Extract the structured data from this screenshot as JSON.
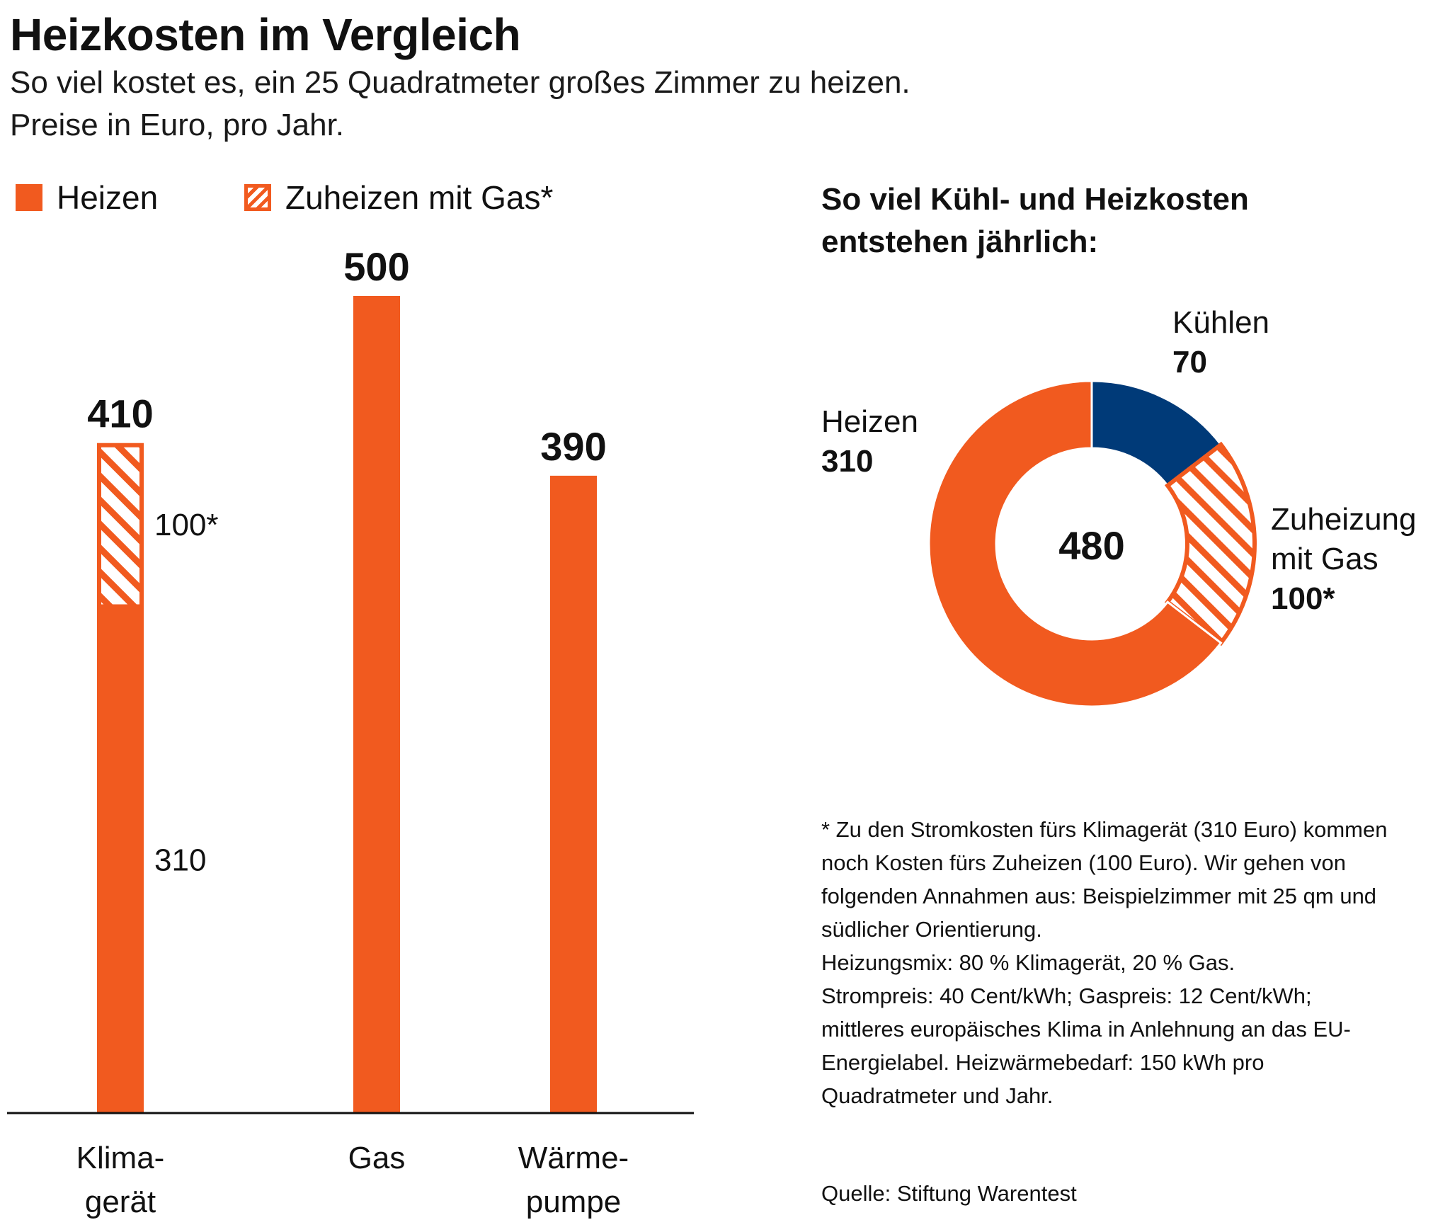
{
  "title": "Heizkosten im Vergleich",
  "subtitle_line1": "So viel kostet es, ein 25 Quadratmeter großes Zimmer zu heizen.",
  "subtitle_line2": "Preise in Euro, pro Jahr.",
  "legend": {
    "heizen": "Heizen",
    "zuheizen": "Zuheizen mit Gas*"
  },
  "colors": {
    "orange": "#f15a1f",
    "navy": "#003a78",
    "text": "#111111"
  },
  "chart_data": [
    {
      "type": "bar",
      "stacked": true,
      "title": "Heizkosten im Vergleich",
      "categories": [
        "Klimagerät",
        "Gas",
        "Wärmepumpe"
      ],
      "category_lines": [
        [
          "Klima-",
          "gerät"
        ],
        [
          "Gas"
        ],
        [
          "Wärme-",
          "pumpe"
        ]
      ],
      "series": [
        {
          "name": "Heizen",
          "values": [
            310,
            500,
            390
          ],
          "labels": [
            "310",
            "",
            ""
          ]
        },
        {
          "name": "Zuheizen mit Gas*",
          "values": [
            100,
            0,
            0
          ],
          "labels": [
            "100*",
            "",
            ""
          ]
        }
      ],
      "totals": [
        "410",
        "500",
        "390"
      ],
      "ylim": [
        0,
        500
      ],
      "grid": false
    },
    {
      "type": "pie",
      "donut": true,
      "title_line1": "So viel Kühl- und Heizkosten",
      "title_line2": "entstehen jährlich:",
      "center_label": "480",
      "slices": [
        {
          "name": "Kühlen",
          "name_lines": [
            "Kühlen"
          ],
          "value": 70,
          "label": "70",
          "color": "#003a78",
          "hatched": false
        },
        {
          "name": "Zuheizung mit Gas",
          "name_lines": [
            "Zuheizung",
            "mit Gas"
          ],
          "value": 100,
          "label": "100*",
          "color": "#f15a1f",
          "hatched": true
        },
        {
          "name": "Heizen",
          "name_lines": [
            "Heizen"
          ],
          "value": 310,
          "label": "310",
          "color": "#f15a1f",
          "hatched": false
        }
      ]
    }
  ],
  "footnote": [
    "* Zu den Stromkosten fürs Klimagerät (310 Euro) kommen noch Kosten fürs Zuheizen (100 Euro). Wir gehen von folgenden Annahmen aus: Beispielzimmer mit 25 qm und südlicher Orientierung.",
    "Heizungsmix: 80 % Klimagerät, 20 % Gas.",
    "Strompreis: 40 Cent/kWh; Gaspreis: 12 Cent/kWh; mittleres europäisches Klima in Anlehnung an das EU-Energielabel. Heizwärmebedarf: 150 kWh pro Quadratmeter und Jahr."
  ],
  "source": "Quelle: Stiftung Warentest"
}
